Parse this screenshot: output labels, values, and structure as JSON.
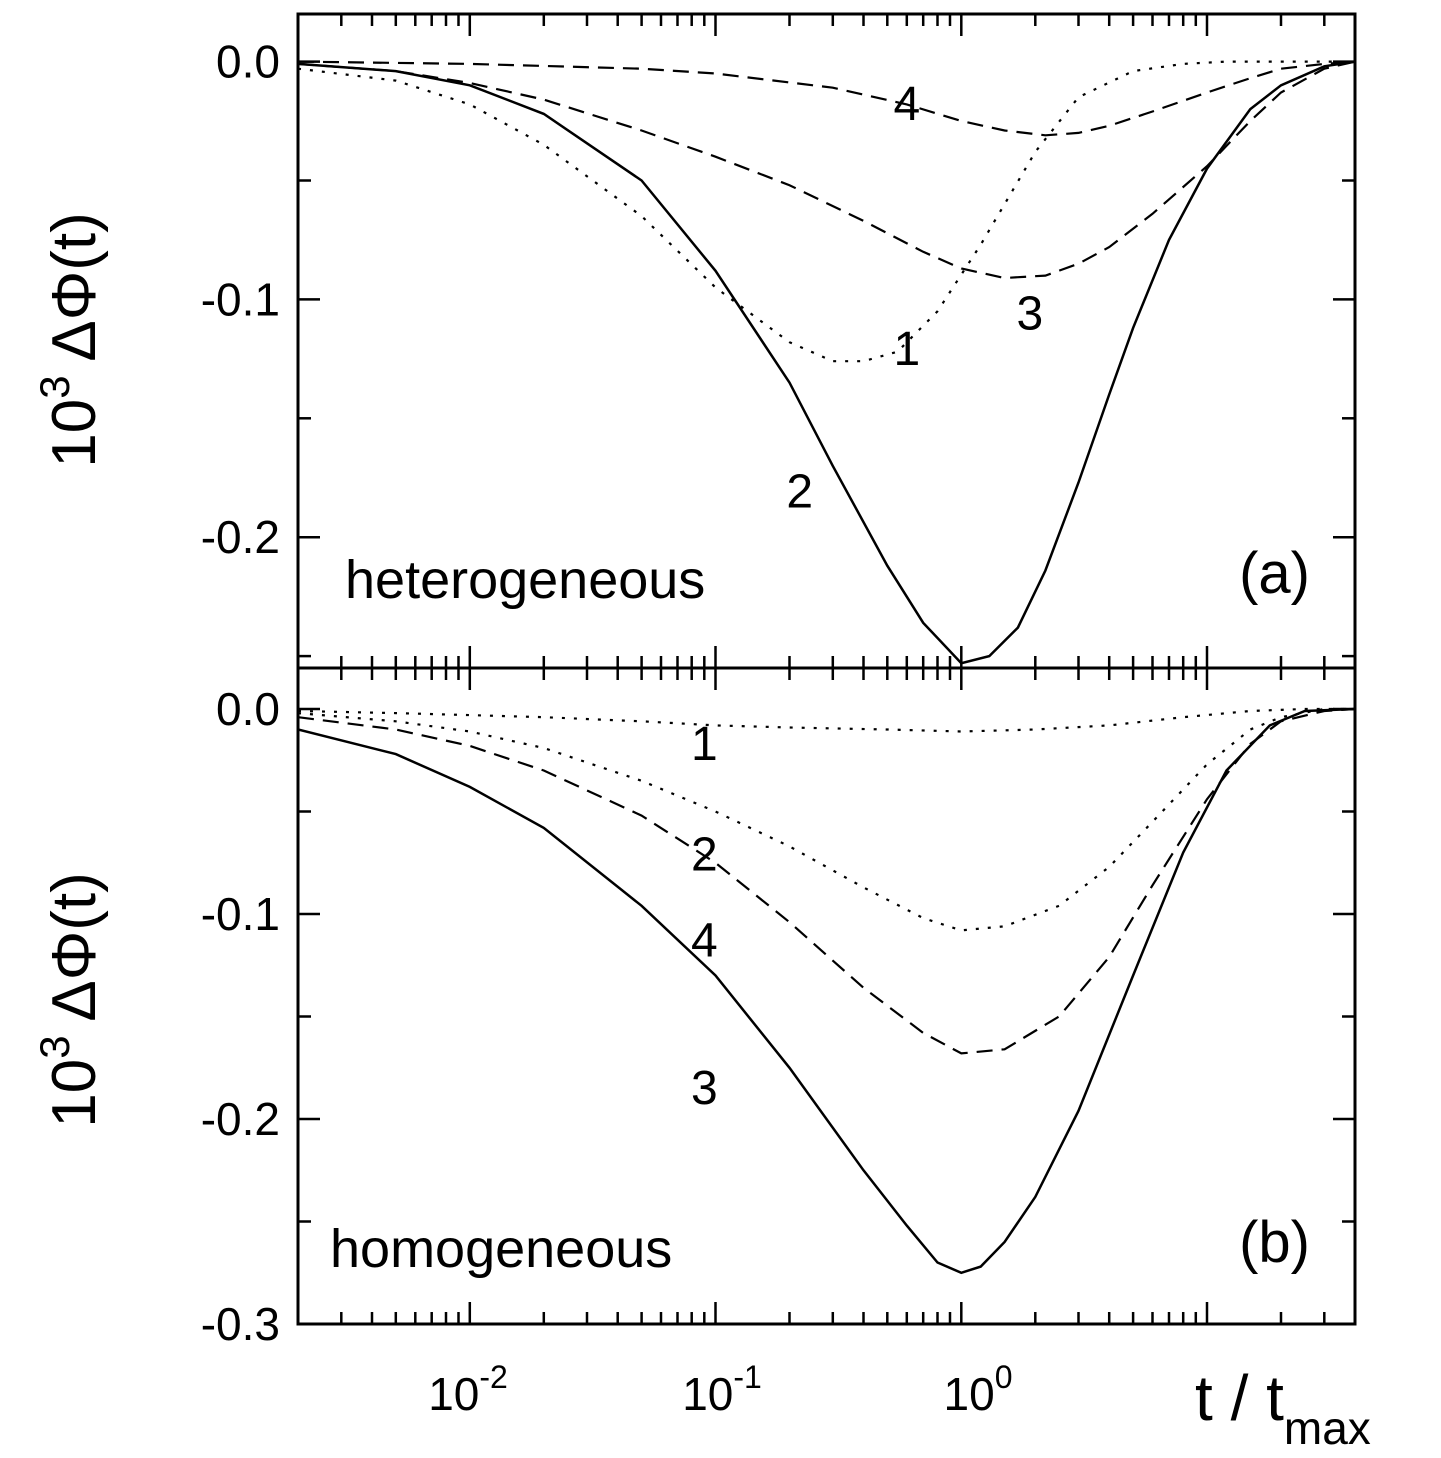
{
  "chart_data": [
    {
      "panel": "(a)",
      "type": "line",
      "label": "heterogeneous",
      "xscale": "log",
      "xlim": [
        0.002,
        40
      ],
      "ylim": [
        -0.255,
        0.02
      ],
      "yticks": [
        0.0,
        -0.1,
        -0.2
      ],
      "ytick_labels": [
        "0.0",
        "-0.1",
        "-0.2"
      ],
      "ylabel": [
        "10",
        "3",
        " ΔΦ(t)"
      ],
      "series": [
        {
          "name": "1",
          "style": "dotted",
          "x": [
            0.002,
            0.005,
            0.01,
            0.02,
            0.05,
            0.1,
            0.2,
            0.3,
            0.4,
            0.55,
            0.8,
            1.2,
            2,
            3,
            5,
            8,
            12,
            20,
            30,
            40
          ],
          "y": [
            -0.003,
            -0.008,
            -0.018,
            -0.035,
            -0.065,
            -0.095,
            -0.118,
            -0.126,
            -0.126,
            -0.122,
            -0.105,
            -0.077,
            -0.038,
            -0.015,
            -0.004,
            -0.001,
            0.0,
            0.0,
            0.0,
            0.0
          ]
        },
        {
          "name": "2",
          "style": "solid",
          "x": [
            0.002,
            0.005,
            0.01,
            0.02,
            0.05,
            0.1,
            0.2,
            0.3,
            0.5,
            0.7,
            1.0,
            1.3,
            1.7,
            2.2,
            3,
            4,
            5,
            7,
            10,
            15,
            20,
            30,
            40
          ],
          "y": [
            -0.001,
            -0.004,
            -0.01,
            -0.022,
            -0.05,
            -0.088,
            -0.135,
            -0.17,
            -0.212,
            -0.236,
            -0.253,
            -0.25,
            -0.238,
            -0.214,
            -0.177,
            -0.14,
            -0.112,
            -0.075,
            -0.045,
            -0.02,
            -0.01,
            -0.002,
            0.0
          ]
        },
        {
          "name": "3",
          "style": "dashed",
          "x": [
            0.002,
            0.005,
            0.01,
            0.02,
            0.05,
            0.1,
            0.2,
            0.4,
            0.7,
            1.0,
            1.5,
            2.2,
            3,
            4,
            6,
            10,
            15,
            20,
            30,
            40
          ],
          "y": [
            -0.001,
            -0.004,
            -0.009,
            -0.016,
            -0.029,
            -0.04,
            -0.052,
            -0.067,
            -0.08,
            -0.087,
            -0.091,
            -0.09,
            -0.085,
            -0.078,
            -0.064,
            -0.044,
            -0.025,
            -0.013,
            -0.003,
            0.0
          ]
        },
        {
          "name": "4",
          "style": "dashed",
          "x": [
            0.002,
            0.01,
            0.05,
            0.1,
            0.3,
            0.6,
            1.0,
            1.5,
            2.2,
            3,
            4,
            6,
            10,
            15,
            20,
            30,
            40
          ],
          "y": [
            0.0,
            -0.001,
            -0.003,
            -0.005,
            -0.011,
            -0.018,
            -0.025,
            -0.029,
            -0.031,
            -0.03,
            -0.027,
            -0.021,
            -0.013,
            -0.007,
            -0.003,
            -0.001,
            0.0
          ]
        }
      ],
      "data_labels": [
        {
          "text": "1",
          "x": 0.6,
          "y": -0.12
        },
        {
          "text": "2",
          "x": 0.22,
          "y": -0.18
        },
        {
          "text": "3",
          "x": 1.9,
          "y": -0.105
        },
        {
          "text": "4",
          "x": 0.6,
          "y": -0.017
        }
      ]
    },
    {
      "panel": "(b)",
      "type": "line",
      "label": "homogeneous",
      "xscale": "log",
      "xlim": [
        0.002,
        40
      ],
      "ylim": [
        -0.3,
        0.02
      ],
      "yticks": [
        0.0,
        -0.1,
        -0.2,
        -0.3
      ],
      "ytick_labels": [
        "0.0",
        "-0.1",
        "-0.2",
        "-0.3"
      ],
      "xticks": [
        0.01,
        0.1,
        1
      ],
      "xtick_labels": [
        [
          "10",
          "-2"
        ],
        [
          "10",
          "-1"
        ],
        [
          "10",
          "0"
        ]
      ],
      "xlabel": [
        "t / t",
        "max"
      ],
      "ylabel": [
        "10",
        "3",
        " ΔΦ(t)"
      ],
      "series": [
        {
          "name": "1",
          "style": "dotted",
          "x": [
            0.002,
            0.005,
            0.01,
            0.02,
            0.05,
            0.1,
            0.2,
            0.5,
            1.0,
            2,
            4,
            8,
            15,
            25,
            40
          ],
          "y": [
            -0.001,
            -0.002,
            -0.003,
            -0.004,
            -0.006,
            -0.008,
            -0.009,
            -0.01,
            -0.011,
            -0.01,
            -0.008,
            -0.004,
            -0.001,
            0.0,
            0.0
          ]
        },
        {
          "name": "2",
          "style": "dotted",
          "x": [
            0.002,
            0.005,
            0.01,
            0.02,
            0.05,
            0.1,
            0.2,
            0.4,
            0.7,
            1.0,
            1.5,
            2.5,
            4,
            6,
            10,
            15,
            20,
            30,
            40
          ],
          "y": [
            -0.002,
            -0.006,
            -0.011,
            -0.019,
            -0.035,
            -0.05,
            -0.067,
            -0.087,
            -0.102,
            -0.108,
            -0.106,
            -0.096,
            -0.077,
            -0.055,
            -0.027,
            -0.01,
            -0.004,
            0.0,
            0.0
          ]
        },
        {
          "name": "3",
          "style": "solid",
          "x": [
            0.002,
            0.005,
            0.01,
            0.02,
            0.05,
            0.1,
            0.2,
            0.4,
            0.6,
            0.8,
            1.0,
            1.2,
            1.5,
            2,
            3,
            5,
            8,
            12,
            18,
            25,
            40
          ],
          "y": [
            -0.01,
            -0.022,
            -0.038,
            -0.058,
            -0.096,
            -0.13,
            -0.175,
            -0.225,
            -0.252,
            -0.27,
            -0.275,
            -0.272,
            -0.26,
            -0.238,
            -0.196,
            -0.13,
            -0.07,
            -0.03,
            -0.008,
            -0.001,
            0.0
          ]
        },
        {
          "name": "4",
          "style": "dashed",
          "x": [
            0.002,
            0.005,
            0.01,
            0.02,
            0.05,
            0.1,
            0.2,
            0.4,
            0.7,
            1.0,
            1.5,
            2.5,
            4,
            6,
            10,
            15,
            20,
            30,
            40
          ],
          "y": [
            -0.004,
            -0.01,
            -0.018,
            -0.03,
            -0.052,
            -0.075,
            -0.104,
            -0.136,
            -0.158,
            -0.168,
            -0.166,
            -0.15,
            -0.121,
            -0.086,
            -0.044,
            -0.017,
            -0.006,
            -0.001,
            0.0
          ]
        }
      ],
      "data_labels": [
        {
          "text": "1",
          "x": 0.09,
          "y": -0.016
        },
        {
          "text": "2",
          "x": 0.09,
          "y": -0.07
        },
        {
          "text": "4",
          "x": 0.09,
          "y": -0.112
        },
        {
          "text": "3",
          "x": 0.09,
          "y": -0.184
        }
      ]
    }
  ]
}
